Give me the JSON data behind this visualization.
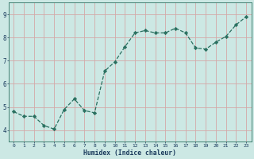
{
  "x": [
    0,
    1,
    2,
    3,
    4,
    5,
    6,
    7,
    8,
    9,
    10,
    11,
    12,
    13,
    14,
    15,
    16,
    17,
    18,
    19,
    20,
    21,
    22,
    23
  ],
  "y": [
    4.8,
    4.6,
    4.6,
    4.2,
    4.05,
    4.9,
    5.35,
    4.85,
    4.75,
    6.55,
    6.95,
    7.6,
    8.2,
    8.3,
    8.2,
    8.2,
    8.4,
    8.2,
    7.55,
    7.5,
    7.8,
    8.05,
    8.55,
    8.9
  ],
  "xlim": [
    -0.5,
    23.5
  ],
  "ylim": [
    3.5,
    9.5
  ],
  "yticks": [
    4,
    5,
    6,
    7,
    8,
    9
  ],
  "xticks": [
    0,
    1,
    2,
    3,
    4,
    5,
    6,
    7,
    8,
    9,
    10,
    11,
    12,
    13,
    14,
    15,
    16,
    17,
    18,
    19,
    20,
    21,
    22,
    23
  ],
  "xlabel": "Humidex (Indice chaleur)",
  "line_color": "#2a7060",
  "marker_color": "#2a7060",
  "bg_color": "#cce8e4",
  "grid_color_h": "#d4a8a8",
  "grid_color_v": "#d4a8a8",
  "xlabel_color": "#1a3a5c",
  "ytick_color": "#1a3a5c",
  "xtick_color": "#1a3a5c",
  "spine_color": "#2a7060"
}
